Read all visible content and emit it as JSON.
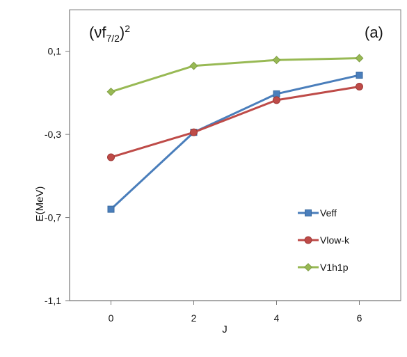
{
  "chart_data": {
    "type": "line",
    "title_main": "(νf",
    "title_sub": "7/2",
    "title_close": ")",
    "title_sup": "2",
    "panel_label": "(a)",
    "xlabel": "J",
    "ylabel": "E(MeV)",
    "x": [
      0,
      2,
      4,
      6
    ],
    "x_tick_labels": [
      "0",
      "2",
      "4",
      "6"
    ],
    "xlim": [
      -1,
      7
    ],
    "ylim": [
      -1.1,
      0.3
    ],
    "y_ticks": [
      0.1,
      -0.3,
      -0.7,
      -1.1
    ],
    "y_tick_labels": [
      "0,1",
      "-0,3",
      "-0,7",
      "-1,1"
    ],
    "series": [
      {
        "name": "Veff",
        "values": [
          -0.66,
          -0.29,
          -0.105,
          -0.015
        ],
        "color": "#4a7ebb",
        "marker": "square"
      },
      {
        "name": "Vlow-k",
        "values": [
          -0.41,
          -0.29,
          -0.135,
          -0.07
        ],
        "color": "#be4b48",
        "marker": "circle"
      },
      {
        "name": "V1h1p",
        "values": [
          -0.095,
          0.03,
          0.058,
          0.067
        ],
        "color": "#98b954",
        "marker": "diamond"
      }
    ],
    "legend_position": "lower-right",
    "grid": false
  }
}
